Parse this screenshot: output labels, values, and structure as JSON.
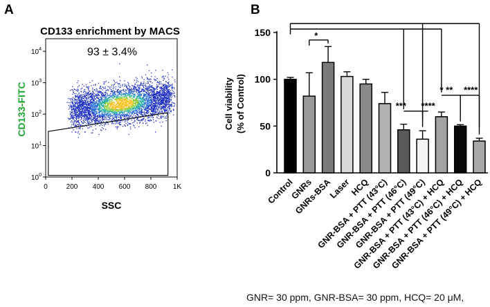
{
  "panel_a_letter": "A",
  "panel_b_letter": "B",
  "footnote": "GNR= 30 ppm, GNR-BSA= 30 ppm, HCQ= 20 μM,",
  "colors": {
    "density_low": "#1d2fc4",
    "density_mid": "#2bb0a0",
    "density_high": "#f5c021",
    "cd133_label": "#1ea530"
  },
  "chart_data": [
    {
      "panel": "A",
      "type": "scatter",
      "title": "CD133 enrichment by MACS",
      "xlabel": "SSC",
      "ylabel": "CD133-FITC",
      "x_ticks": [
        "0",
        "200",
        "400",
        "600",
        "800",
        "1K"
      ],
      "x_range": [
        0,
        1000
      ],
      "y_ticks": [
        {
          "base": "10",
          "exp": "0"
        },
        {
          "base": "10",
          "exp": "1"
        },
        {
          "base": "10",
          "exp": "2"
        },
        {
          "base": "10",
          "exp": "3"
        },
        {
          "base": "10",
          "exp": "4"
        }
      ],
      "y_range_log10": [
        0,
        4.4
      ],
      "gate_percent": "93 ± 3.4%",
      "gate_polygon_data": [
        [
          20,
          1.45
        ],
        [
          930,
          2.05
        ],
        [
          930,
          0.05
        ],
        [
          20,
          0.05
        ]
      ],
      "population": {
        "x_range": [
          200,
          950
        ],
        "center_y_log10": 2.35,
        "spread_log10": 0.3,
        "slope_per_1000": 0.5,
        "n_points": 4200
      }
    },
    {
      "panel": "B",
      "type": "bar",
      "ylabel": [
        "Cell viability",
        "(% of Control)"
      ],
      "ylim": [
        0,
        150
      ],
      "y_ticks": [
        "0",
        "50",
        "100",
        "150"
      ],
      "categories": [
        "Control",
        "GNRs",
        "GNRs-BSA",
        "Laser",
        "HCQ",
        "GNR-BSA + PTT (43°C)",
        "GNR-BSA + PTT (46°C)",
        "GNR-BSA + PTT (49°C)",
        "GNR-BSA + PTT (43°C) + HCQ",
        "GNR-BSA + PTT (46°C) + HCQ",
        "GNR-BSA + PTT (49°C) + HCQ"
      ],
      "values": [
        100,
        82,
        118,
        103,
        95,
        74,
        46,
        36,
        60,
        50,
        34
      ],
      "errors": [
        2,
        25,
        17,
        5,
        5,
        12,
        6,
        9,
        5,
        1.5,
        3
      ],
      "bar_colors": [
        "#000000",
        "#9a9a9a",
        "#7a7a7a",
        "#d9d9d9",
        "#8a8a8a",
        "#b2b2b2",
        "#5a5a5a",
        "#f4f4f4",
        "#a3a3a3",
        "#0a0a0a",
        "#a8a8a8"
      ],
      "significance": [
        {
          "label": "*",
          "bar": 1,
          "value": 142,
          "pairs": [
            2
          ]
        },
        {
          "label": "***",
          "bar": 6,
          "value": 66,
          "pairs": [
            7
          ]
        },
        {
          "label": "****",
          "bar": 6,
          "value": 66,
          "pairs": []
        },
        {
          "label": "* **",
          "bar": 8,
          "value": 83,
          "pairs": [
            9
          ]
        },
        {
          "label": "****",
          "bar": 9,
          "value": 83,
          "pairs": [
            10
          ]
        }
      ],
      "bracket_top": {
        "from_bar": 0,
        "to_bars": [
          7,
          10
        ],
        "value": 155
      },
      "bracket_mid": {
        "from_bar": 0,
        "to_bars": [
          6
        ],
        "value": 150
      },
      "control_bracket": {
        "bar": 0,
        "value": 148
      }
    }
  ]
}
